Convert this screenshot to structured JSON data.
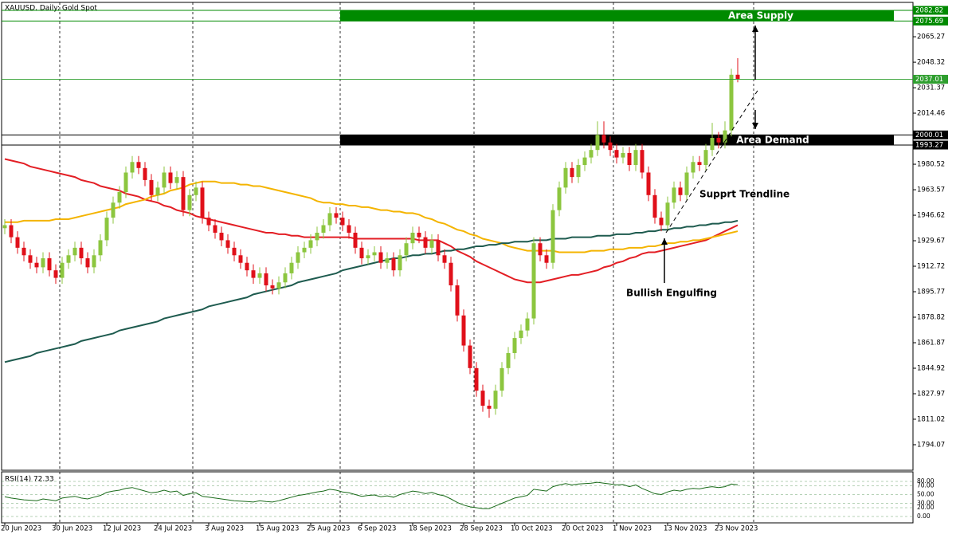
{
  "chart_data": {
    "type": "candlestick",
    "title": "XAUUSD, Daily:  Gold Spot",
    "categories": [
      "20 Jun 2023",
      null,
      null,
      null,
      null,
      null,
      null,
      null,
      "30 Jun 2023",
      null,
      null,
      null,
      null,
      null,
      null,
      null,
      "12 Jul 2023",
      null,
      null,
      null,
      null,
      null,
      null,
      null,
      "24 Jul 2023",
      null,
      null,
      null,
      null,
      null,
      null,
      null,
      "3 Aug 2023",
      null,
      null,
      null,
      null,
      null,
      null,
      null,
      "15 Aug 2023",
      null,
      null,
      null,
      null,
      null,
      null,
      null,
      "25 Aug 2023",
      null,
      null,
      null,
      null,
      null,
      null,
      null,
      "6 Sep 2023",
      null,
      null,
      null,
      null,
      null,
      null,
      null,
      "18 Sep 2023",
      null,
      null,
      null,
      null,
      null,
      null,
      null,
      "28 Sep 2023",
      null,
      null,
      null,
      null,
      null,
      null,
      null,
      "10 Oct 2023",
      null,
      null,
      null,
      null,
      null,
      null,
      null,
      "20 Oct 2023",
      null,
      null,
      null,
      null,
      null,
      null,
      null,
      "1 Nov 2023",
      null,
      null,
      null,
      null,
      null,
      null,
      null,
      "13 Nov 2023",
      null,
      null,
      null,
      null,
      null,
      null,
      null,
      "23 Nov 2023",
      null,
      null,
      null
    ],
    "open": [
      1938,
      1940,
      1932,
      1925,
      1920,
      1915,
      1912,
      1918,
      1910,
      1905,
      1915,
      1920,
      1925,
      1918,
      1912,
      1920,
      1930,
      1945,
      1955,
      1962,
      1975,
      1982,
      1978,
      1970,
      1960,
      1965,
      1975,
      1968,
      1972,
      1950,
      1960,
      1965,
      1945,
      1940,
      1935,
      1930,
      1925,
      1920,
      1915,
      1910,
      1905,
      1908,
      1900,
      1898,
      1902,
      1908,
      1915,
      1922,
      1925,
      1930,
      1935,
      1940,
      1948,
      1945,
      1940,
      1935,
      1925,
      1918,
      1920,
      1922,
      1915,
      1918,
      1910,
      1920,
      1928,
      1935,
      1932,
      1925,
      1930,
      1920,
      1915,
      1900,
      1880,
      1860,
      1845,
      1830,
      1820,
      1818,
      1830,
      1845,
      1855,
      1865,
      1870,
      1878,
      1928,
      1920,
      1915,
      1950,
      1965,
      1978,
      1972,
      1980,
      1985,
      1990,
      2000,
      1995,
      1990,
      1985,
      1988,
      1980,
      1990,
      1975,
      1960,
      1945,
      1940,
      1955,
      1965,
      1960,
      1975,
      1982,
      1980,
      1990,
      1998,
      1995,
      2003,
      2040
    ],
    "high": [
      1944,
      1944,
      1936,
      1929,
      1924,
      1919,
      1922,
      1922,
      1914,
      1919,
      1924,
      1929,
      1929,
      1922,
      1924,
      1934,
      1949,
      1959,
      1966,
      1979,
      1986,
      1986,
      1982,
      1974,
      1969,
      1979,
      1979,
      1976,
      1976,
      1964,
      1969,
      1969,
      1949,
      1944,
      1939,
      1934,
      1929,
      1924,
      1919,
      1914,
      1912,
      1912,
      1904,
      1906,
      1912,
      1919,
      1926,
      1929,
      1934,
      1939,
      1944,
      1952,
      1952,
      1949,
      1944,
      1939,
      1929,
      1924,
      1926,
      1926,
      1922,
      1922,
      1924,
      1932,
      1939,
      1939,
      1936,
      1934,
      1934,
      1924,
      1919,
      1904,
      1884,
      1864,
      1849,
      1834,
      1824,
      1834,
      1849,
      1859,
      1869,
      1874,
      1882,
      1932,
      1932,
      1924,
      1954,
      1969,
      1982,
      1982,
      1984,
      1989,
      1994,
      2009,
      2009,
      1999,
      1994,
      1992,
      1992,
      1994,
      1994,
      1979,
      1964,
      1949,
      1959,
      1969,
      1969,
      1979,
      1986,
      1986,
      1994,
      2008,
      2002,
      2009,
      2044,
      2051
    ],
    "low": [
      1934,
      1928,
      1921,
      1916,
      1911,
      1908,
      1908,
      1906,
      1901,
      1901,
      1911,
      1916,
      1914,
      1908,
      1908,
      1916,
      1926,
      1941,
      1951,
      1958,
      1971,
      1974,
      1966,
      1956,
      1956,
      1961,
      1964,
      1964,
      1946,
      1946,
      1956,
      1941,
      1936,
      1931,
      1926,
      1921,
      1916,
      1911,
      1906,
      1901,
      1901,
      1896,
      1894,
      1894,
      1898,
      1904,
      1911,
      1918,
      1921,
      1926,
      1931,
      1936,
      1941,
      1936,
      1931,
      1921,
      1914,
      1914,
      1916,
      1911,
      1911,
      1906,
      1906,
      1916,
      1924,
      1928,
      1921,
      1921,
      1916,
      1911,
      1896,
      1876,
      1856,
      1841,
      1826,
      1816,
      1812,
      1814,
      1826,
      1841,
      1851,
      1861,
      1866,
      1874,
      1916,
      1911,
      1911,
      1946,
      1961,
      1968,
      1968,
      1976,
      1981,
      1986,
      1991,
      1986,
      1981,
      1981,
      1976,
      1976,
      1971,
      1956,
      1941,
      1936,
      1936,
      1951,
      1956,
      1956,
      1971,
      1976,
      1976,
      1986,
      1991,
      1991,
      1999,
      2035
    ],
    "close": [
      1940,
      1932,
      1925,
      1920,
      1915,
      1912,
      1918,
      1910,
      1905,
      1915,
      1920,
      1925,
      1918,
      1912,
      1920,
      1930,
      1945,
      1955,
      1962,
      1975,
      1982,
      1978,
      1970,
      1960,
      1965,
      1975,
      1968,
      1972,
      1950,
      1960,
      1965,
      1945,
      1940,
      1935,
      1930,
      1925,
      1920,
      1915,
      1910,
      1905,
      1908,
      1900,
      1898,
      1902,
      1908,
      1915,
      1922,
      1925,
      1930,
      1935,
      1940,
      1948,
      1945,
      1940,
      1935,
      1925,
      1918,
      1920,
      1922,
      1915,
      1918,
      1910,
      1920,
      1928,
      1935,
      1932,
      1925,
      1930,
      1920,
      1915,
      1900,
      1880,
      1860,
      1845,
      1830,
      1820,
      1818,
      1830,
      1845,
      1855,
      1865,
      1870,
      1878,
      1928,
      1920,
      1915,
      1950,
      1965,
      1978,
      1972,
      1980,
      1985,
      1990,
      2000,
      1995,
      1990,
      1985,
      1988,
      1980,
      1990,
      1975,
      1960,
      1945,
      1940,
      1955,
      1965,
      1960,
      1975,
      1982,
      1980,
      1990,
      1998,
      1995,
      2003,
      2040,
      2037.01
    ],
    "up_color": "#8cc63f",
    "down_color": "#e0101a",
    "ylim": [
      1777.1,
      2088.1
    ],
    "yticks": [
      2065.27,
      2048.32,
      2031.37,
      2014.46,
      1980.52,
      1963.57,
      1946.62,
      1929.67,
      1912.72,
      1895.77,
      1878.82,
      1861.87,
      1844.92,
      1827.97,
      1811.02,
      1794.07
    ],
    "lines": [
      {
        "color": "#e31e24",
        "values": [
          1984,
          1983,
          1982,
          1981,
          1979,
          1978,
          1977,
          1976,
          1975,
          1974,
          1973,
          1972,
          1970,
          1969,
          1968,
          1966,
          1965,
          1964,
          1963,
          1961,
          1960,
          1959,
          1957,
          1956,
          1955,
          1953,
          1952,
          1950,
          1949,
          1948,
          1946,
          1945,
          1944,
          1943,
          1942,
          1941,
          1940,
          1939,
          1938,
          1937,
          1936,
          1935,
          1935,
          1934,
          1934,
          1933,
          1933,
          1932,
          1932,
          1932,
          1932,
          1932,
          1932,
          1932,
          1932,
          1931,
          1931,
          1931,
          1931,
          1931,
          1931,
          1931,
          1931,
          1931,
          1931,
          1930,
          1930,
          1930,
          1930,
          1928,
          1926,
          1923,
          1921,
          1919,
          1916,
          1914,
          1912,
          1910,
          1908,
          1906,
          1904,
          1903,
          1902,
          1902,
          1902,
          1903,
          1904,
          1905,
          1906,
          1907,
          1907,
          1908,
          1909,
          1910,
          1912,
          1913,
          1915,
          1916,
          1918,
          1919,
          1921,
          1922,
          1922,
          1923,
          1924,
          1925,
          1926,
          1927,
          1928,
          1929,
          1930,
          1932,
          1934,
          1936,
          1938,
          1940
        ]
      },
      {
        "color": "#f4b400",
        "values": [
          1942,
          1942,
          1942,
          1943,
          1943,
          1943,
          1943,
          1943,
          1944,
          1944,
          1944,
          1945,
          1946,
          1947,
          1948,
          1949,
          1950,
          1951,
          1952,
          1954,
          1955,
          1956,
          1957,
          1959,
          1960,
          1961,
          1963,
          1964,
          1965,
          1967,
          1968,
          1969,
          1969,
          1969,
          1968,
          1968,
          1968,
          1967,
          1967,
          1966,
          1966,
          1965,
          1964,
          1963,
          1962,
          1961,
          1960,
          1959,
          1958,
          1956,
          1955,
          1955,
          1954,
          1954,
          1953,
          1953,
          1952,
          1952,
          1951,
          1950,
          1950,
          1949,
          1949,
          1948,
          1948,
          1947,
          1945,
          1944,
          1942,
          1941,
          1939,
          1937,
          1936,
          1934,
          1933,
          1931,
          1930,
          1929,
          1928,
          1926,
          1925,
          1924,
          1923,
          1923,
          1923,
          1923,
          1923,
          1922,
          1922,
          1922,
          1922,
          1922,
          1923,
          1923,
          1923,
          1924,
          1924,
          1924,
          1925,
          1925,
          1925,
          1926,
          1926,
          1927,
          1928,
          1928,
          1929,
          1929,
          1930,
          1930,
          1931,
          1932,
          1933,
          1934,
          1935,
          1936
        ]
      },
      {
        "color": "#1e5b4f",
        "values": [
          1849,
          1850,
          1851,
          1852,
          1853,
          1855,
          1856,
          1857,
          1858,
          1859,
          1860,
          1861,
          1863,
          1864,
          1865,
          1866,
          1867,
          1868,
          1870,
          1871,
          1872,
          1873,
          1874,
          1875,
          1876,
          1878,
          1879,
          1880,
          1881,
          1882,
          1883,
          1884,
          1886,
          1887,
          1888,
          1889,
          1890,
          1891,
          1892,
          1894,
          1895,
          1896,
          1897,
          1898,
          1899,
          1900,
          1902,
          1903,
          1904,
          1905,
          1906,
          1907,
          1908,
          1910,
          1911,
          1912,
          1913,
          1914,
          1915,
          1916,
          1917,
          1918,
          1918,
          1919,
          1920,
          1920,
          1921,
          1921,
          1922,
          1923,
          1923,
          1924,
          1924,
          1925,
          1926,
          1926,
          1927,
          1927,
          1928,
          1928,
          1929,
          1929,
          1929,
          1930,
          1930,
          1930,
          1931,
          1931,
          1931,
          1932,
          1932,
          1932,
          1932,
          1933,
          1933,
          1933,
          1934,
          1934,
          1934,
          1935,
          1935,
          1936,
          1936,
          1937,
          1937,
          1938,
          1938,
          1939,
          1939,
          1940,
          1940,
          1941,
          1941,
          1942,
          1942,
          1943
        ]
      }
    ],
    "zones": [
      {
        "label": "Area Supply",
        "low": 2075.69,
        "high": 2082.82,
        "color": "#008a00"
      },
      {
        "label": "Area Demand",
        "low": 1993.27,
        "high": 2000.01,
        "color": "#000000"
      }
    ],
    "annotations": [
      "Supprt Trendline",
      "Bullish Engulfing"
    ],
    "rsi": {
      "title": "RSI(14) 72.33",
      "color": "#1a6b1a",
      "ylim": [
        0,
        100
      ],
      "yticks": [
        {
          "value": 80,
          "label": "80.00"
        },
        {
          "value": 70,
          "label": "70.00"
        },
        {
          "value": 50,
          "label": "50.00"
        },
        {
          "value": 30,
          "label": "30.00"
        },
        {
          "value": 20,
          "label": "20.00"
        },
        {
          "value": 0,
          "label": "0.00"
        }
      ],
      "values": [
        45,
        42,
        40,
        38,
        37,
        36,
        40,
        38,
        36,
        42,
        44,
        46,
        42,
        40,
        44,
        48,
        55,
        58,
        60,
        64,
        66,
        62,
        58,
        54,
        56,
        60,
        56,
        58,
        48,
        52,
        54,
        46,
        44,
        42,
        40,
        38,
        36,
        35,
        34,
        33,
        36,
        34,
        33,
        36,
        40,
        44,
        48,
        50,
        53,
        56,
        58,
        62,
        60,
        56,
        54,
        50,
        46,
        48,
        49,
        45,
        47,
        44,
        50,
        54,
        58,
        56,
        52,
        55,
        50,
        47,
        40,
        32,
        26,
        22,
        20,
        18,
        18,
        24,
        30,
        36,
        42,
        45,
        48,
        62,
        60,
        58,
        68,
        72,
        75,
        72,
        74,
        75,
        76,
        78,
        76,
        74,
        72,
        73,
        68,
        72,
        64,
        58,
        52,
        50,
        56,
        60,
        58,
        62,
        64,
        63,
        66,
        68,
        66,
        68,
        74,
        72.33
      ]
    }
  }
}
